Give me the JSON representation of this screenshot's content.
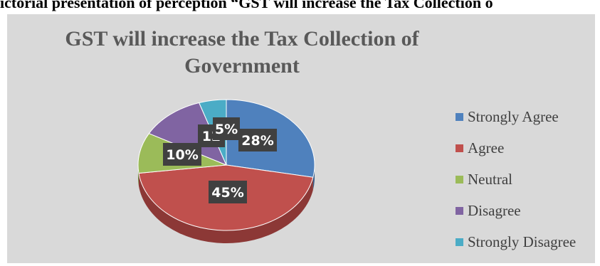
{
  "caption": "ictorial presentation of  perception “GST will increase the Tax Collection o",
  "chart_data": {
    "type": "pie",
    "title": "GST will increase the Tax Collection of Government",
    "title_lines": [
      "GST will increase the Tax Collection  of",
      "Government"
    ],
    "slices": [
      {
        "name": "Strongly Agree",
        "value": 28,
        "label": "28%",
        "color": "#4f81bd",
        "dark": "#385d8a"
      },
      {
        "name": "Agree",
        "value": 45,
        "label": "45%",
        "color": "#c0504d",
        "dark": "#8c3836"
      },
      {
        "name": "Neutral",
        "value": 10,
        "label": "10%",
        "color": "#9bbb59",
        "dark": "#71893f"
      },
      {
        "name": "Disagree",
        "value": 12,
        "label": "12",
        "color": "#8064a2",
        "dark": "#5c4776"
      },
      {
        "name": "Strongly Disagree",
        "value": 5,
        "label": "5%",
        "color": "#4bacc6",
        "dark": "#31859c"
      }
    ],
    "legend_position": "right"
  }
}
